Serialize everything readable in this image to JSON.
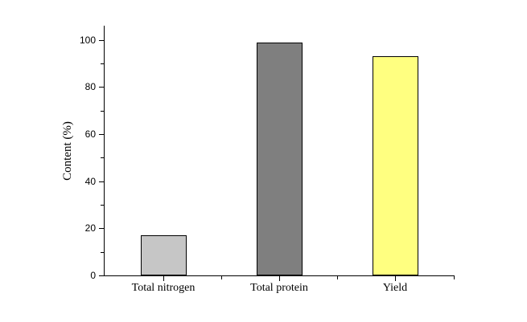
{
  "chart_data": {
    "type": "bar",
    "title": "",
    "xlabel": "",
    "ylabel": "Content (%)",
    "categories": [
      "Total nitrogen",
      "Total protein",
      "Yield"
    ],
    "values": [
      17.2,
      98.9,
      93.2
    ],
    "bar_colors": [
      "#c6c6c6",
      "#7f7f7f",
      "#ffff80"
    ],
    "bar_edge_color": "#000000",
    "axis_color": "#000000",
    "background_color": "#ffffff",
    "ylim": [
      0,
      106
    ],
    "yticks": [
      0,
      20,
      40,
      60,
      80,
      100
    ],
    "minor_yticks": [
      10,
      30,
      50,
      70,
      90
    ],
    "grid": false,
    "legend": false
  }
}
